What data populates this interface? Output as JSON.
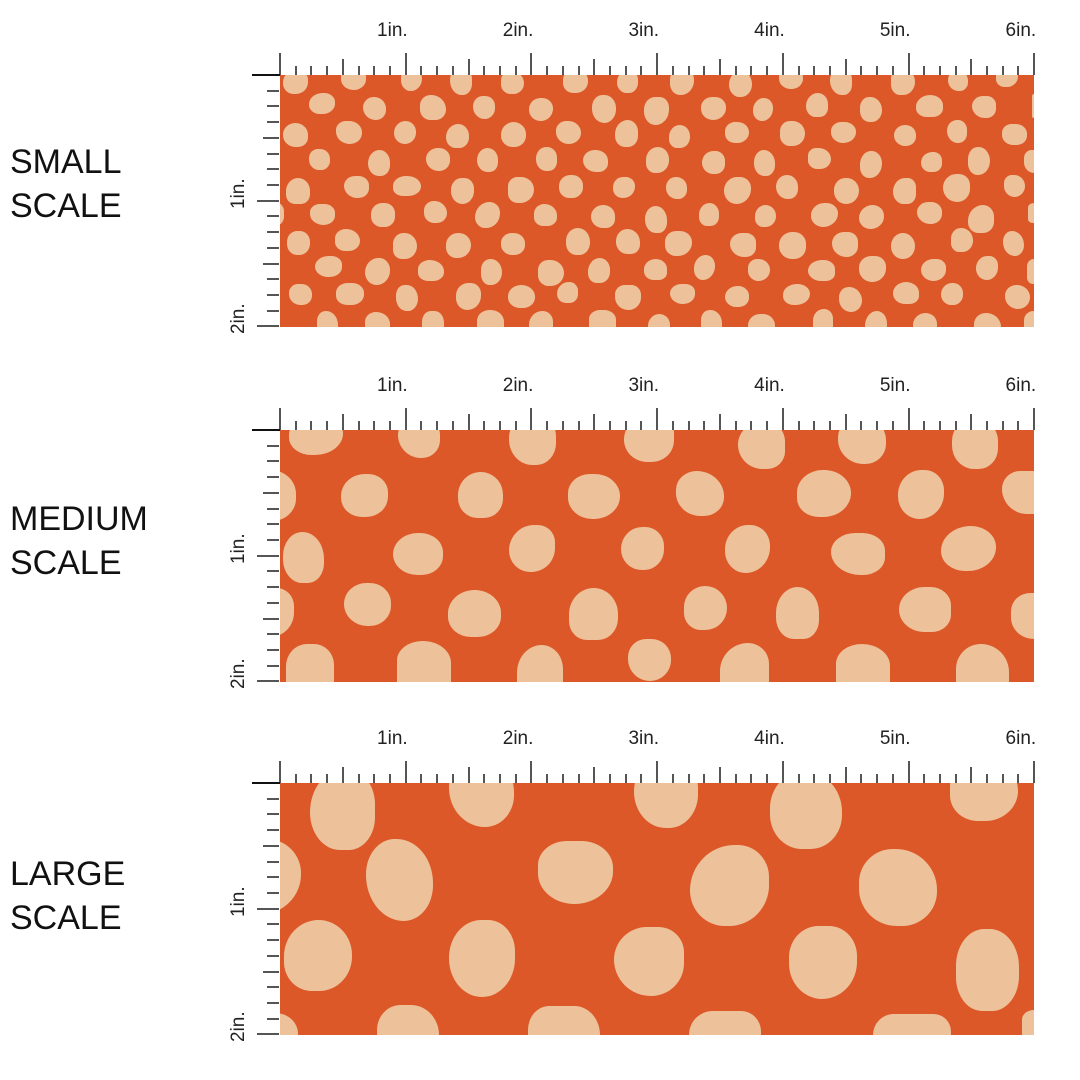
{
  "colors": {
    "background": "#DD5828",
    "dot": "#EDC29B"
  },
  "ruler_labels": {
    "horizontal": [
      "1in.",
      "2in.",
      "3in.",
      "4in.",
      "5in.",
      "6in."
    ],
    "vertical": [
      "1in.",
      "2in."
    ]
  },
  "scales": [
    {
      "id": "small",
      "label_line1": "SMALL",
      "label_line2": "SCALE"
    },
    {
      "id": "medium",
      "label_line1": "MEDIUM",
      "label_line2": "SCALE"
    },
    {
      "id": "large",
      "label_line1": "LARGE",
      "label_line2": "SCALE"
    }
  ]
}
